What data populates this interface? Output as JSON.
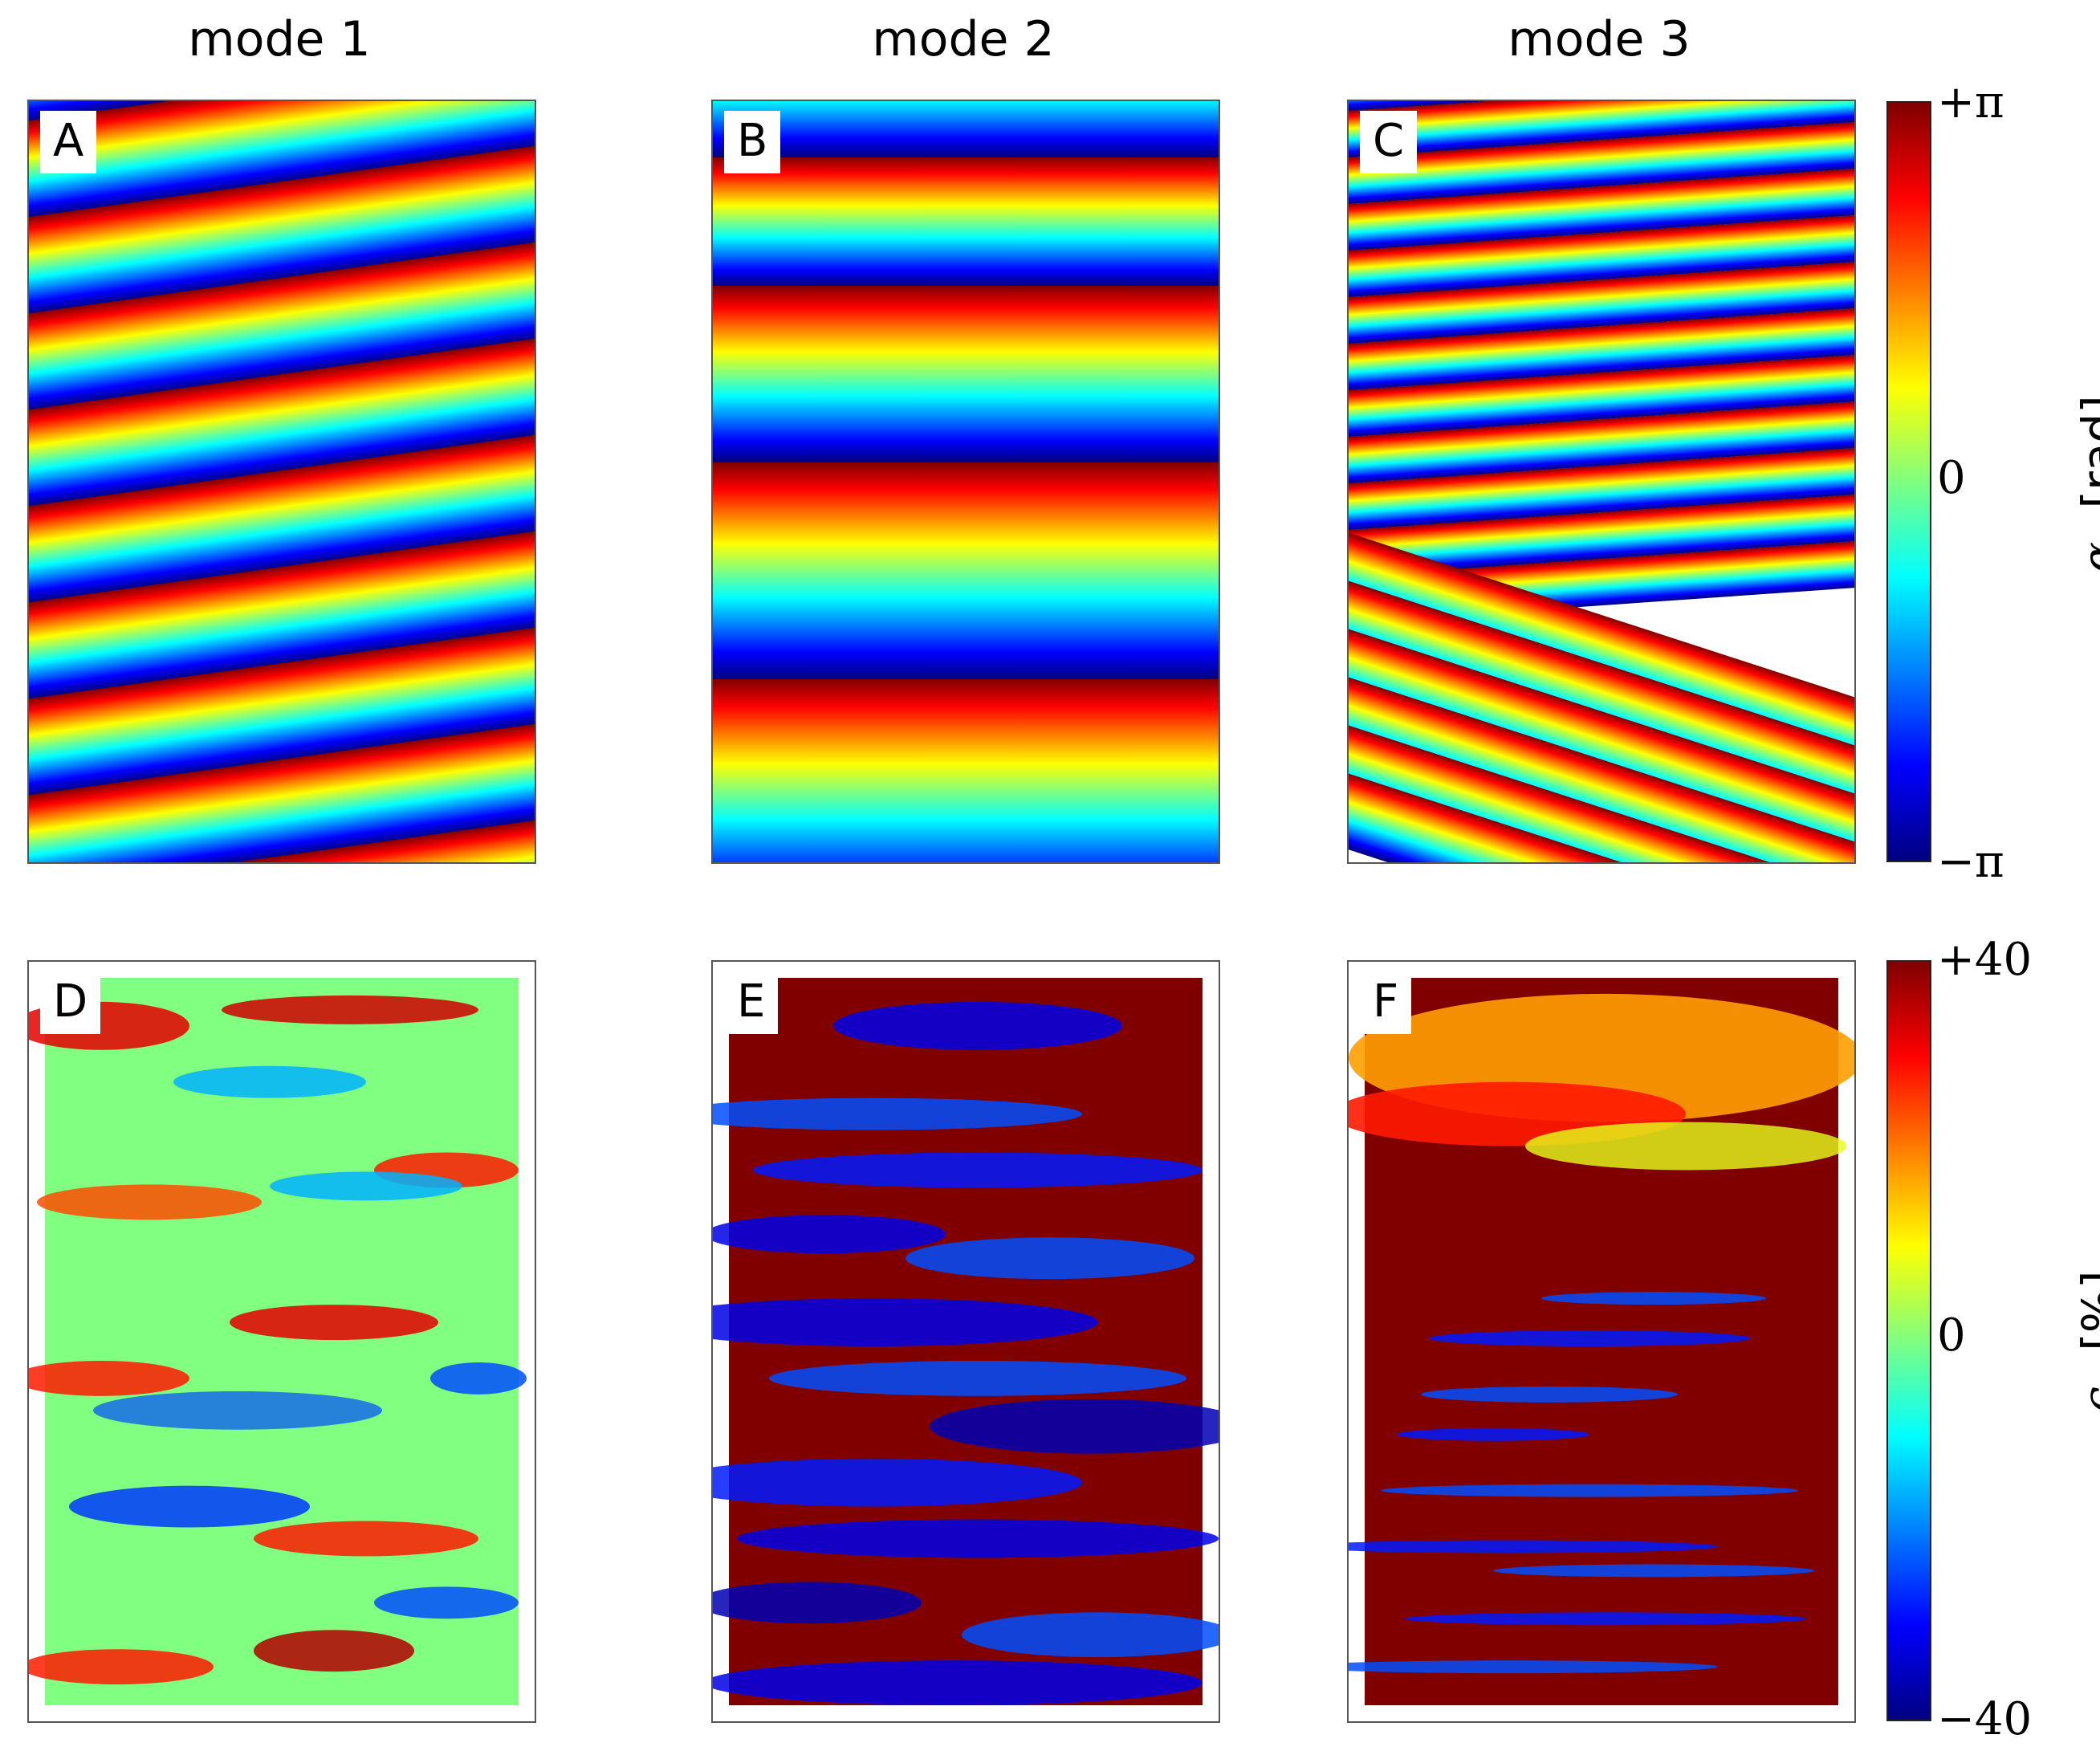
{
  "columns": [
    "mode 1",
    "mode 2",
    "mode 3"
  ],
  "panels": [
    {
      "label": "A",
      "mode": "mode 1",
      "quantity": "alpha_x"
    },
    {
      "label": "B",
      "mode": "mode 2",
      "quantity": "alpha_x"
    },
    {
      "label": "C",
      "mode": "mode 3",
      "quantity": "alpha_x"
    },
    {
      "label": "D",
      "mode": "mode 1",
      "quantity": "epsilon_h"
    },
    {
      "label": "E",
      "mode": "mode 2",
      "quantity": "epsilon_h"
    },
    {
      "label": "F",
      "mode": "mode 3",
      "quantity": "epsilon_h"
    }
  ],
  "colorbars": {
    "top": {
      "max": "+π",
      "mid": "0",
      "min": "−π",
      "symbol": "α",
      "subscript": "x",
      "unit": "[rad]",
      "colormap": "jet"
    },
    "bottom": {
      "max": "+40",
      "mid": "0",
      "min": "−40",
      "symbol": "ϵ",
      "subscript": "h",
      "unit": "[%]",
      "colormap": "jet"
    }
  },
  "chart_data": [
    {
      "type": "heatmap",
      "title": "mode 1",
      "panel": "A",
      "quantity": "α_x",
      "zlim": [
        -3.1416,
        3.1416
      ],
      "pattern": "tilted phase stripes, ~7 wraps"
    },
    {
      "type": "heatmap",
      "title": "mode 2",
      "panel": "B",
      "quantity": "α_x",
      "zlim": [
        -3.1416,
        3.1416
      ],
      "pattern": "horizontal phase bands, ~3 wraps"
    },
    {
      "type": "heatmap",
      "title": "mode 3",
      "panel": "C",
      "quantity": "α_x",
      "zlim": [
        -3.1416,
        3.1416
      ],
      "pattern": "dense stripes with defects at bottom"
    },
    {
      "type": "heatmap",
      "title": "mode 1",
      "panel": "D",
      "quantity": "ϵ_h",
      "zlim": [
        -40,
        40
      ],
      "pattern": "weak strain blobs"
    },
    {
      "type": "heatmap",
      "title": "mode 2",
      "panel": "E",
      "quantity": "ϵ_h",
      "zlim": [
        -40,
        40
      ],
      "pattern": "saturated strain bands"
    },
    {
      "type": "heatmap",
      "title": "mode 3",
      "panel": "F",
      "quantity": "ϵ_h",
      "zlim": [
        -40,
        40
      ],
      "pattern": "saturated high strain with defect loops"
    }
  ]
}
